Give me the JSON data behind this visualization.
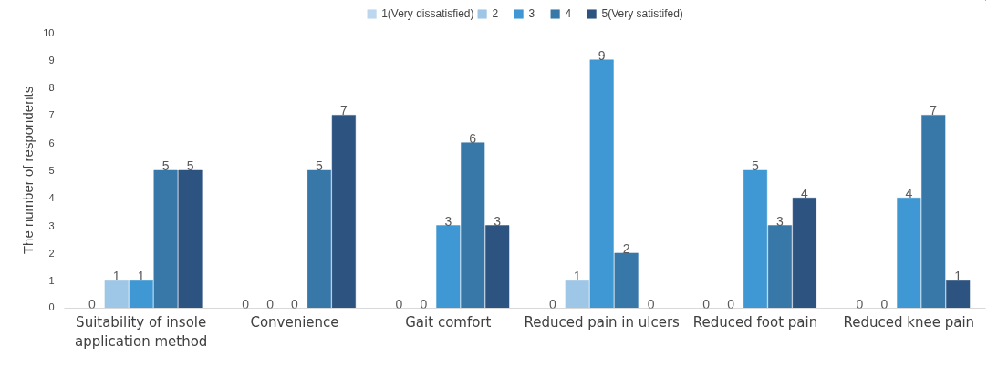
{
  "chart_data": {
    "type": "bar",
    "ylabel": "The number of respondents",
    "categories": [
      "Suitability of insole application method",
      "Convenience",
      "Gait comfort",
      "Reduced pain in ulcers",
      "Reduced foot pain",
      "Reduced knee pain"
    ],
    "series": [
      {
        "name": "1(Very dissatisfied)",
        "color": "#bcd7ee",
        "values": [
          0,
          0,
          0,
          0,
          0,
          0
        ]
      },
      {
        "name": "2",
        "color": "#9ec6e6",
        "values": [
          1,
          0,
          0,
          1,
          0,
          0
        ]
      },
      {
        "name": "3",
        "color": "#3f98d3",
        "values": [
          1,
          0,
          3,
          9,
          5,
          4
        ]
      },
      {
        "name": "4",
        "color": "#3878a8",
        "values": [
          5,
          5,
          6,
          2,
          3,
          7
        ]
      },
      {
        "name": "5(Very satistifed)",
        "color": "#2d5380",
        "values": [
          5,
          7,
          3,
          0,
          4,
          1
        ]
      }
    ],
    "ylim": [
      0,
      10
    ],
    "yticks": [
      0,
      1,
      2,
      3,
      4,
      5,
      6,
      7,
      8,
      9,
      10
    ],
    "grid": false,
    "legend": "top",
    "data_labels": true
  }
}
